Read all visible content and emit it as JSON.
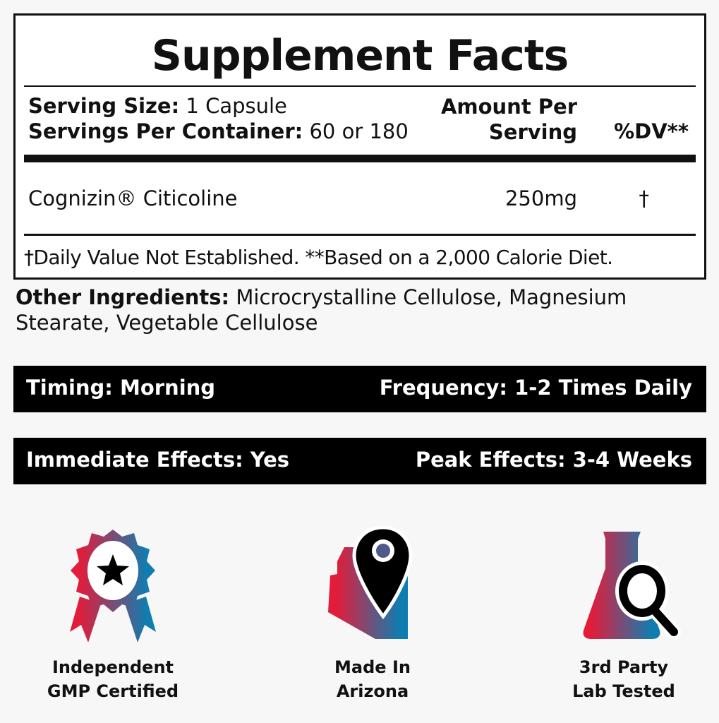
{
  "facts": {
    "title": "Supplement Facts",
    "serving_size_label": "Serving Size:",
    "serving_size_value": "1 Capsule",
    "servings_label": "Servings Per Container:",
    "servings_value": "60 or 180",
    "amount_header_1": "Amount Per",
    "amount_header_2": "Serving",
    "dv_header": "%DV**",
    "ingredient": {
      "name": "Cognizin® Citicoline",
      "amount": "250mg",
      "dv": "†"
    },
    "footnote": "†Daily Value Not Established. **Based on a 2,000 Calorie Diet."
  },
  "other": {
    "label": "Other Ingredients:",
    "line1": "Microcrystalline Cellulose,  Magnesium",
    "line2": "Stearate, Vegetable Cellulose"
  },
  "bars": [
    {
      "left": "Timing: Morning",
      "right": "Frequency: 1-2 Times Daily"
    },
    {
      "left": "Immediate Effects: Yes",
      "right": "Peak Effects: 3-4 Weeks"
    }
  ],
  "badges": [
    {
      "icon": "award-ribbon-star",
      "line1": "Independent",
      "line2": "GMP Certified"
    },
    {
      "icon": "arizona-map-pin",
      "line1": "Made In",
      "line2": "Arizona"
    },
    {
      "icon": "flask-magnifier",
      "line1": "3rd Party",
      "line2": "Lab Tested"
    }
  ],
  "colors": {
    "gradient_start": "#e31c3a",
    "gradient_end": "#0f7db0",
    "bar": "#000000",
    "background": "#f7f7f7"
  }
}
